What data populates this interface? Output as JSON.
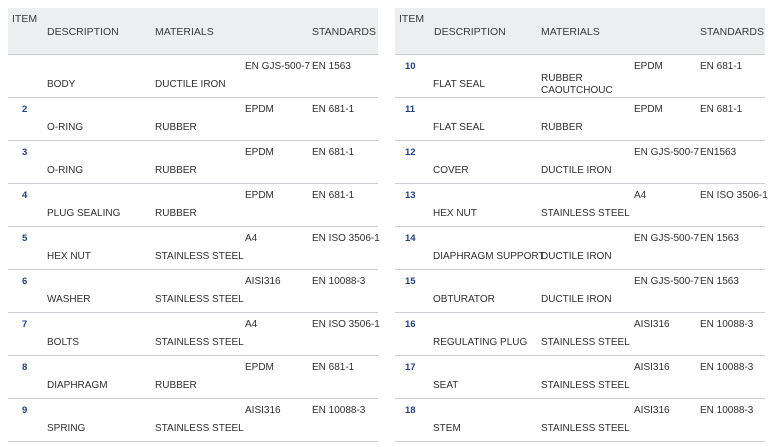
{
  "headers": {
    "item": "ITEM",
    "description": "DESCRIPTION",
    "materials": "MATERIALS",
    "standards": "STANDARDS"
  },
  "left_rows": [
    {
      "item": "",
      "description": "BODY",
      "materials": "DUCTILE IRON",
      "grade": "EN GJS-500-7",
      "standard": "EN 1563"
    },
    {
      "item": "2",
      "description": "O-RING",
      "materials": "RUBBER",
      "grade": "EPDM",
      "standard": "EN 681-1"
    },
    {
      "item": "3",
      "description": "O-RING",
      "materials": "RUBBER",
      "grade": "EPDM",
      "standard": "EN 681-1"
    },
    {
      "item": "4",
      "description": "PLUG SEALING",
      "materials": "RUBBER",
      "grade": "EPDM",
      "standard": "EN 681-1"
    },
    {
      "item": "5",
      "description": "HEX NUT",
      "materials": "STAINLESS STEEL",
      "grade": "A4",
      "standard": "EN ISO 3506-1"
    },
    {
      "item": "6",
      "description": "WASHER",
      "materials": "STAINLESS STEEL",
      "grade": "AISI316",
      "standard": "EN 10088-3"
    },
    {
      "item": "7",
      "description": "BOLTS",
      "materials": "STAINLESS STEEL",
      "grade": "A4",
      "standard": "EN ISO 3506-1"
    },
    {
      "item": "8",
      "description": "DIAPHRAGM",
      "materials": "RUBBER",
      "grade": "EPDM",
      "standard": "EN 681-1"
    },
    {
      "item": "9",
      "description": "SPRING",
      "materials": "STAINLESS STEEL",
      "grade": "AISI316",
      "standard": "EN 10088-3"
    }
  ],
  "right_rows": [
    {
      "item": "10",
      "description": "FLAT SEAL",
      "materials": "RUBBER CAOUTCHOUC",
      "grade": "EPDM",
      "standard": "EN 681-1"
    },
    {
      "item": "11",
      "description": "FLAT SEAL",
      "materials": "RUBBER",
      "grade": "EPDM",
      "standard": "EN 681-1"
    },
    {
      "item": "12",
      "description": "COVER",
      "materials": "DUCTILE IRON",
      "grade": "EN GJS-500-7",
      "standard": "EN1563"
    },
    {
      "item": "13",
      "description": "HEX NUT",
      "materials": "STAINLESS STEEL",
      "grade": "A4",
      "standard": "EN ISO 3506-1"
    },
    {
      "item": "14",
      "description": "DIAPHRAGM SUPPORT",
      "materials": "DUCTILE IRON",
      "grade": "EN GJS-500-7",
      "standard": "EN 1563"
    },
    {
      "item": "15",
      "description": "OBTURATOR",
      "materials": "DUCTILE IRON",
      "grade": "EN GJS-500-7",
      "standard": "EN 1563"
    },
    {
      "item": "16",
      "description": "REGULATING PLUG",
      "materials": "STAINLESS STEEL",
      "grade": "AISI316",
      "standard": "EN 10088-3"
    },
    {
      "item": "17",
      "description": "SEAT",
      "materials": "STAINLESS STEEL",
      "grade": "AISI316",
      "standard": "EN 10088-3"
    },
    {
      "item": "18",
      "description": "STEM",
      "materials": "STAINLESS STEEL",
      "grade": "AISI316",
      "standard": "EN 10088-3"
    }
  ]
}
